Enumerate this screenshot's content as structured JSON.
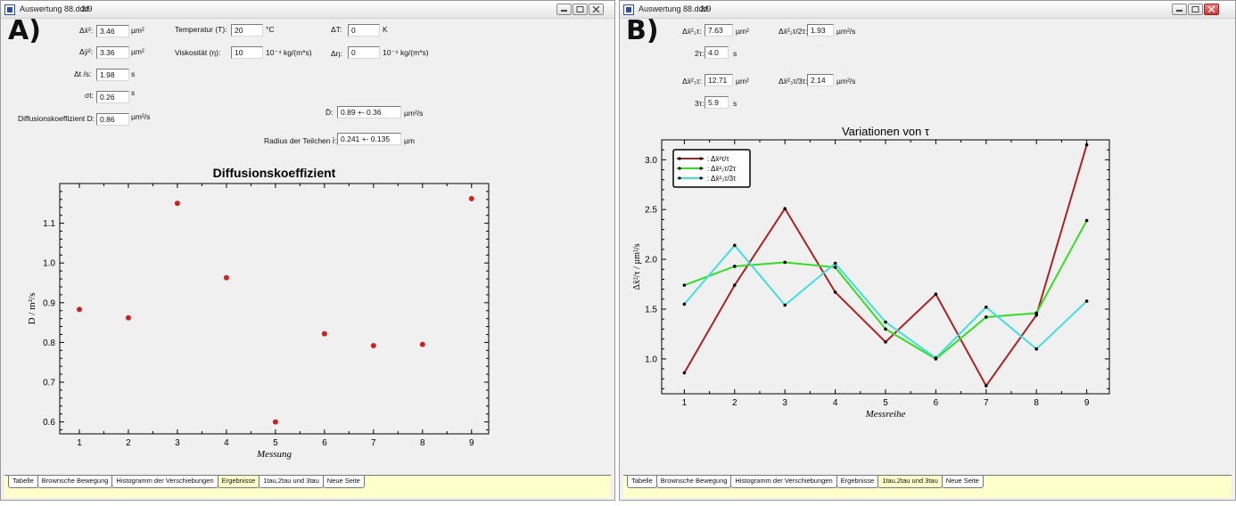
{
  "windowA": {
    "title": "Auswertung 88.ddd",
    "page": "2/9",
    "panel_letter": "A)",
    "fields": {
      "dx2": {
        "label": "Δx̄²:",
        "value": "3.46",
        "unit": "µm²"
      },
      "dy2": {
        "label": "Δȳ²:",
        "value": "3.36",
        "unit": "µm²"
      },
      "dt": {
        "label": "Δt /s:",
        "value": "1.98",
        "unit": "s"
      },
      "sigma_t": {
        "label": "σt:",
        "value": "0.26",
        "unit": "s"
      },
      "diff_D": {
        "label": "Diffusionskoeffizient D:",
        "value": "0.86",
        "unit": "µm²/s"
      },
      "temp": {
        "label": "Temperatur (T):",
        "value": "20",
        "unit": "°C"
      },
      "visc": {
        "label": "Viskosität (η):",
        "value": "10",
        "unit": "10⁻⁴ kg/(m*s)"
      },
      "dT": {
        "label": "ΔT:",
        "value": "0",
        "unit": "K"
      },
      "deta": {
        "label": "Δη:",
        "value": "0",
        "unit": "10⁻⁴ kg/(m*s)"
      },
      "Dmean": {
        "label": "D̄:",
        "value": "0.89 +- 0.36",
        "unit": "µm²/s"
      },
      "radius": {
        "label": "Radius der Teilchen r̄:",
        "value": "0.241 +- 0.135",
        "unit": "µm"
      }
    },
    "tabs": [
      "Tabelle",
      "Brownsche Bewegung",
      "Histogramm der Verschiebungen",
      "Ergebnisse",
      "1tau,2tau und 3tau",
      "Neue Seite"
    ],
    "active_tab": 3
  },
  "windowB": {
    "title": "Auswertung 88.ddd",
    "page": "2/9",
    "panel_letter": "B)",
    "fields": {
      "dx2_2t": {
        "label": "Δx̄²₂τ:",
        "value": "7.63",
        "unit": "µm²"
      },
      "dx2_2t_ratio": {
        "label": "Δx̄²₂τ/2τ:",
        "value": "1.93",
        "unit": "µm²/s"
      },
      "two_tau": {
        "label": "2τ:",
        "value": "4.0",
        "unit": "s"
      },
      "dx2_3t": {
        "label": "Δx̄²₃τ:",
        "value": "12.71",
        "unit": "µm²"
      },
      "dx2_3t_ratio": {
        "label": "Δx̄²₃τ/3τ:",
        "value": "2.14",
        "unit": "µm²/s"
      },
      "three_tau": {
        "label": "3τ:",
        "value": "5.9",
        "unit": "s"
      }
    },
    "tabs": [
      "Tabelle",
      "Brownsche Bewegung",
      "Histogramm der Verschiebungen",
      "Ergebnisse",
      "1tau,2tau und 3tau",
      "Neue Seite"
    ],
    "active_tab": 4
  },
  "chart_data": [
    {
      "type": "scatter",
      "title": "Diffusionskoeffizient",
      "xlabel": "Messung",
      "ylabel": "D / m²/s",
      "x": [
        1,
        2,
        3,
        4,
        5,
        6,
        7,
        8,
        9
      ],
      "xticks": [
        "1",
        "2",
        "3",
        "4",
        "5",
        "6",
        "7",
        "8",
        "9"
      ],
      "yticks": [
        "0.6",
        "0.7",
        "0.8",
        "0.9",
        "1.0",
        "1.1"
      ],
      "xlim": [
        0.6,
        9.35
      ],
      "ylim": [
        0.57,
        1.2
      ],
      "grid": false,
      "color": "#cc2222",
      "values": [
        0.883,
        0.862,
        1.15,
        0.963,
        0.6,
        0.822,
        0.792,
        0.795,
        1.162
      ]
    },
    {
      "type": "line",
      "title": "Variationen von τ",
      "xlabel": "Messreihe",
      "ylabel": "Δx̄²/τ / µm²/s",
      "x": [
        1,
        2,
        3,
        4,
        5,
        6,
        7,
        8,
        9
      ],
      "xticks": [
        "1",
        "2",
        "3",
        "4",
        "5",
        "6",
        "7",
        "8",
        "9"
      ],
      "yticks": [
        "1.0",
        "1.5",
        "2.0",
        "2.5",
        "3.0"
      ],
      "xlim": [
        0.55,
        9.45
      ],
      "ylim": [
        0.65,
        3.2
      ],
      "grid": false,
      "legend_position": "top-left",
      "series": [
        {
          "name": ": Δx̄²τ/τ",
          "color": "#aa2222",
          "values": [
            0.86,
            1.74,
            2.51,
            1.67,
            1.17,
            1.65,
            0.73,
            1.44,
            3.15
          ]
        },
        {
          "name": ": Δx̄²₂τ/2τ",
          "color": "#33dd22",
          "values": [
            1.74,
            1.93,
            1.97,
            1.92,
            1.3,
            1.0,
            1.42,
            1.46,
            2.39
          ]
        },
        {
          "name": ": Δx̄²₃τ/3τ",
          "color": "#44dddd",
          "values": [
            1.55,
            2.14,
            1.54,
            1.96,
            1.37,
            1.01,
            1.52,
            1.1,
            1.58
          ]
        }
      ]
    }
  ]
}
